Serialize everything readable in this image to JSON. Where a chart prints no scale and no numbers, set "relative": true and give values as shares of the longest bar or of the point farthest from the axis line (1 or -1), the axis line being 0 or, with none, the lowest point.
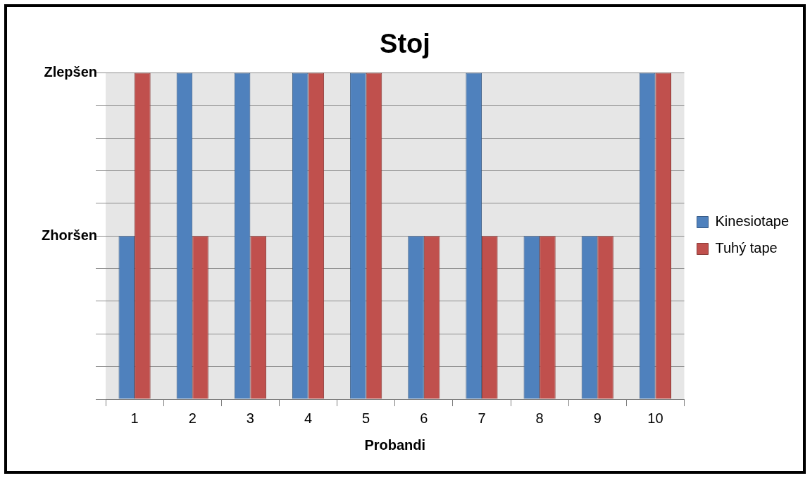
{
  "chart_data": {
    "type": "bar",
    "title": "Stoj",
    "xlabel": "Probandi",
    "categories": [
      "1",
      "2",
      "3",
      "4",
      "5",
      "6",
      "7",
      "8",
      "9",
      "10"
    ],
    "series": [
      {
        "name": "Kinesiotape",
        "color": "#4f81bd",
        "values": [
          0.5,
          1,
          1,
          1,
          1,
          0.5,
          1,
          0.5,
          0.5,
          1
        ]
      },
      {
        "name": "Tuhý tape",
        "color": "#c0504d",
        "values": [
          1,
          0.5,
          0.5,
          1,
          1,
          0.5,
          0.5,
          0.5,
          0.5,
          1
        ]
      }
    ],
    "relative": true,
    "annotations": [
      "Zhoršen",
      "Zlepšen"
    ],
    "grid": "y",
    "legend": "right"
  }
}
